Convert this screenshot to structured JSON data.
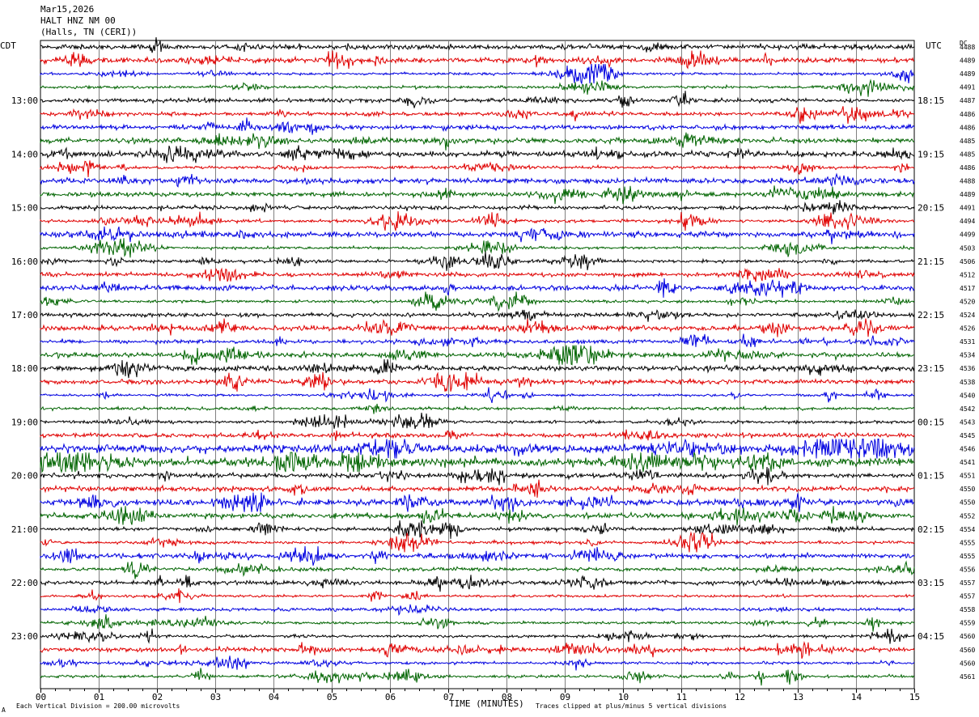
{
  "header": {
    "date": "Mar15,2026",
    "station": "HALT HNZ NM 00",
    "location": "(Halls, TN (CERI))"
  },
  "left_axis_label": "CDT",
  "right_axis_label": "UTC",
  "dc_label": "DC",
  "chart_data": {
    "type": "line",
    "x_axis_label": "TIME (MINUTES)",
    "x_ticks": [
      "00",
      "01",
      "02",
      "03",
      "04",
      "05",
      "06",
      "07",
      "08",
      "09",
      "10",
      "11",
      "12",
      "13",
      "14",
      "15"
    ],
    "xlim": [
      0,
      15
    ],
    "left_hour_labels": [
      "13:00",
      "14:00",
      "15:00",
      "16:00",
      "17:00",
      "18:00",
      "19:00",
      "20:00",
      "21:00",
      "22:00",
      "23:00"
    ],
    "right_hour_labels": [
      "18:15",
      "19:15",
      "20:15",
      "21:15",
      "22:15",
      "23:15",
      "00:15",
      "01:15",
      "02:15",
      "03:15",
      "04:15"
    ],
    "hour_label_trace_index": [
      4,
      8,
      12,
      16,
      20,
      24,
      28,
      32,
      36,
      40,
      44
    ],
    "trace_colors": [
      "#000000",
      "#e00000",
      "#0000e0",
      "#006400"
    ],
    "trace_count": 48,
    "trace_dc_values": [
      "4488",
      "4489",
      "4489",
      "4491",
      "4487",
      "4486",
      "4486",
      "4485",
      "4485",
      "4486",
      "4488",
      "4489",
      "4491",
      "4494",
      "4499",
      "4503",
      "4506",
      "4512",
      "4517",
      "4520",
      "4524",
      "4526",
      "4531",
      "4534",
      "4536",
      "4538",
      "4540",
      "4542",
      "4543",
      "4545",
      "4546",
      "4541",
      "4551",
      "4550",
      "4550",
      "4552",
      "4554",
      "4555",
      "4555",
      "4556",
      "4557",
      "4557",
      "4558",
      "4559",
      "4560",
      "4560",
      "4560",
      "4561"
    ],
    "grid": true
  },
  "footer": {
    "scale_note": "Each Vertical Division =  200.00 microvolts",
    "clip_note": "Traces clipped at plus/minus 5 vertical divisions",
    "corner_mark": "A"
  }
}
